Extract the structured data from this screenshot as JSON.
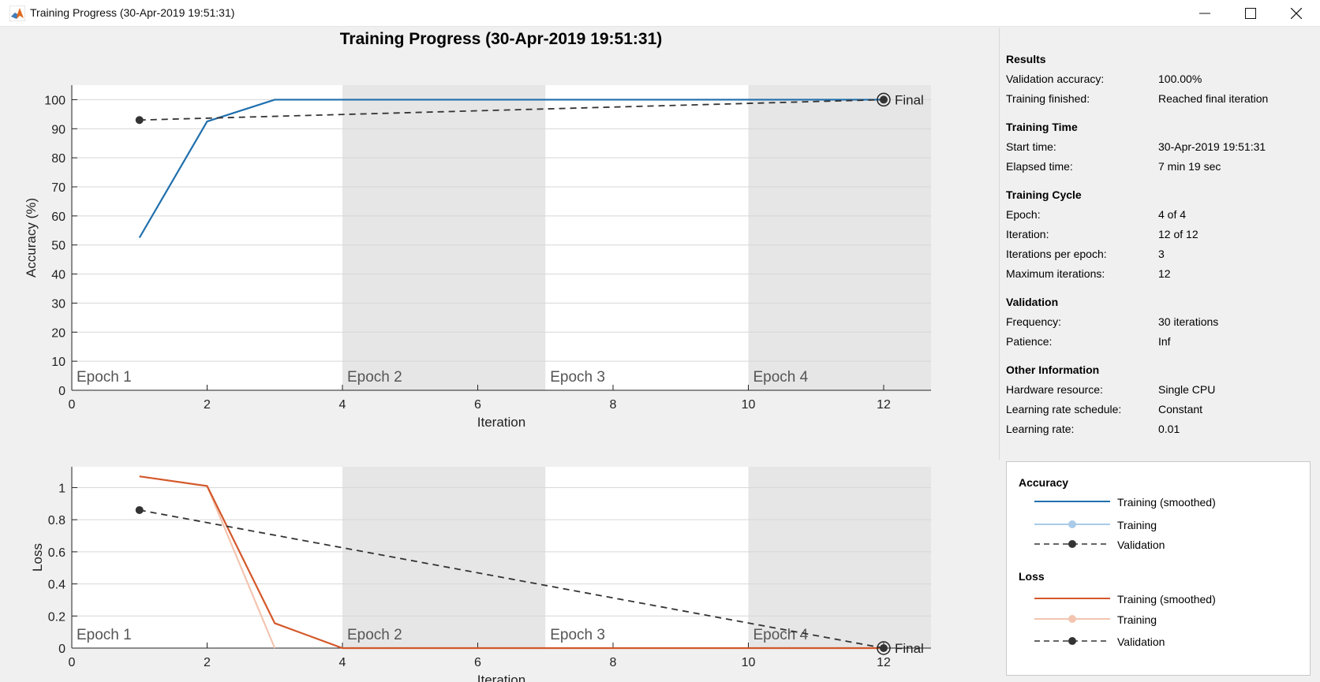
{
  "window": {
    "title": "Training Progress (30-Apr-2019 19:51:31)"
  },
  "figure": {
    "title": "Training Progress (30-Apr-2019 19:51:31)"
  },
  "info_panel": {
    "sections": [
      {
        "heading": "Results",
        "rows": [
          {
            "label": "Validation accuracy:",
            "value": "100.00%"
          },
          {
            "label": "Training finished:",
            "value": "Reached final iteration"
          }
        ]
      },
      {
        "heading": "Training Time",
        "rows": [
          {
            "label": "Start time:",
            "value": "30-Apr-2019 19:51:31"
          },
          {
            "label": "Elapsed time:",
            "value": "7 min 19 sec"
          }
        ]
      },
      {
        "heading": "Training Cycle",
        "rows": [
          {
            "label": "Epoch:",
            "value": "4 of 4"
          },
          {
            "label": "Iteration:",
            "value": "12 of 12"
          },
          {
            "label": "Iterations per epoch:",
            "value": "3"
          },
          {
            "label": "Maximum iterations:",
            "value": "12"
          }
        ]
      },
      {
        "heading": "Validation",
        "rows": [
          {
            "label": "Frequency:",
            "value": "30 iterations"
          },
          {
            "label": "Patience:",
            "value": "Inf"
          }
        ]
      },
      {
        "heading": "Other Information",
        "rows": [
          {
            "label": "Hardware resource:",
            "value": "Single CPU"
          },
          {
            "label": "Learning rate schedule:",
            "value": "Constant"
          },
          {
            "label": "Learning rate:",
            "value": "0.01"
          }
        ]
      }
    ]
  },
  "legend": {
    "accuracy_heading": "Accuracy",
    "loss_heading": "Loss",
    "training_smoothed": "Training (smoothed)",
    "training": "Training",
    "validation": "Validation"
  },
  "colors": {
    "accuracy_smoothed": "#1f6fad",
    "accuracy_training": "#a9cbe8",
    "loss_smoothed": "#d4582a",
    "loss_training": "#f3c5b0",
    "validation": "#333333",
    "epoch_shade": "#e6e6e6"
  },
  "chart_data": [
    {
      "type": "line",
      "xlabel": "Iteration",
      "ylabel": "Accuracy (%)",
      "xlim": [
        0,
        12.7
      ],
      "ylim": [
        0,
        105
      ],
      "xticks": [
        0,
        2,
        4,
        6,
        8,
        10,
        12
      ],
      "yticks": [
        0,
        10,
        20,
        30,
        40,
        50,
        60,
        70,
        80,
        90,
        100
      ],
      "grid": true,
      "epochs": [
        {
          "label": "Epoch 1",
          "start": 0,
          "end": 4,
          "shaded": false
        },
        {
          "label": "Epoch 2",
          "start": 4,
          "end": 7,
          "shaded": true
        },
        {
          "label": "Epoch 3",
          "start": 7,
          "end": 10,
          "shaded": false
        },
        {
          "label": "Epoch 4",
          "start": 10,
          "end": 12.7,
          "shaded": true
        }
      ],
      "series": [
        {
          "name": "Training (smoothed)",
          "style": "solid",
          "color_key": "accuracy_smoothed",
          "x": [
            1,
            2,
            3,
            4,
            5,
            6,
            7,
            8,
            9,
            10,
            11,
            12
          ],
          "y": [
            52.5,
            92.5,
            100,
            100,
            100,
            100,
            100,
            100,
            100,
            100,
            100,
            100
          ]
        },
        {
          "name": "Validation",
          "style": "dashed",
          "color_key": "validation",
          "x": [
            1,
            12
          ],
          "y": [
            93,
            100
          ]
        }
      ],
      "final_marker": {
        "x": 12,
        "y": 100,
        "label": "Final"
      }
    },
    {
      "type": "line",
      "xlabel": "Iteration",
      "ylabel": "Loss",
      "xlim": [
        0,
        12.7
      ],
      "ylim": [
        0,
        1.13
      ],
      "xticks": [
        0,
        2,
        4,
        6,
        8,
        10,
        12
      ],
      "yticks": [
        0,
        0.2,
        0.4,
        0.6,
        0.8,
        1
      ],
      "grid": true,
      "epochs": [
        {
          "label": "Epoch 1",
          "start": 0,
          "end": 4,
          "shaded": false
        },
        {
          "label": "Epoch 2",
          "start": 4,
          "end": 7,
          "shaded": true
        },
        {
          "label": "Epoch 3",
          "start": 7,
          "end": 10,
          "shaded": false
        },
        {
          "label": "Epoch 4",
          "start": 10,
          "end": 12.7,
          "shaded": true
        }
      ],
      "series": [
        {
          "name": "Training",
          "style": "solid",
          "color_key": "loss_training",
          "x": [
            2,
            3
          ],
          "y": [
            1.01,
            0
          ]
        },
        {
          "name": "Training (smoothed)",
          "style": "solid",
          "color_key": "loss_smoothed",
          "x": [
            1,
            2,
            3,
            4,
            5,
            6,
            7,
            8,
            9,
            10,
            11,
            12
          ],
          "y": [
            1.07,
            1.01,
            0.155,
            0,
            0,
            0,
            0,
            0,
            0,
            0,
            0,
            0
          ]
        },
        {
          "name": "Validation",
          "style": "dashed",
          "color_key": "validation",
          "x": [
            1,
            12
          ],
          "y": [
            0.86,
            0
          ]
        }
      ],
      "final_marker": {
        "x": 12,
        "y": 0,
        "label": "Final"
      }
    }
  ]
}
